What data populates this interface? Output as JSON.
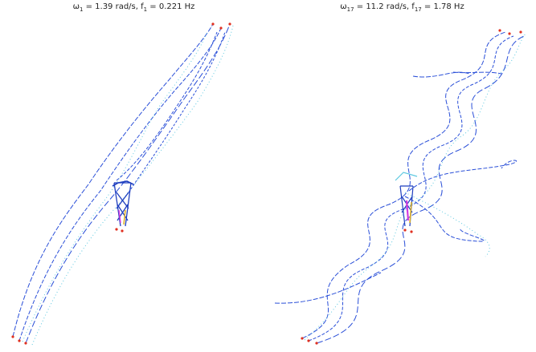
{
  "panels": [
    {
      "id": "mode-1",
      "title": {
        "omega_label": "ω",
        "omega_sub": "1",
        "omega_value": "= 1.39 rad/s, f",
        "f_sub": "1",
        "f_value": "= 0.221 Hz"
      }
    },
    {
      "id": "mode-17",
      "title": {
        "omega_label": "ω",
        "omega_sub": "17",
        "omega_value": "= 11.2 rad/s, f",
        "f_sub": "17",
        "f_value": "= 1.78 Hz"
      }
    }
  ],
  "colors": {
    "cable": "#2a4fd8",
    "cable_dotted": "#5cc8e0",
    "tower": "#1f3fbf",
    "deck_magenta": "#d23adf",
    "deck_yellow": "#e0b020",
    "anchor": "#e03020"
  }
}
